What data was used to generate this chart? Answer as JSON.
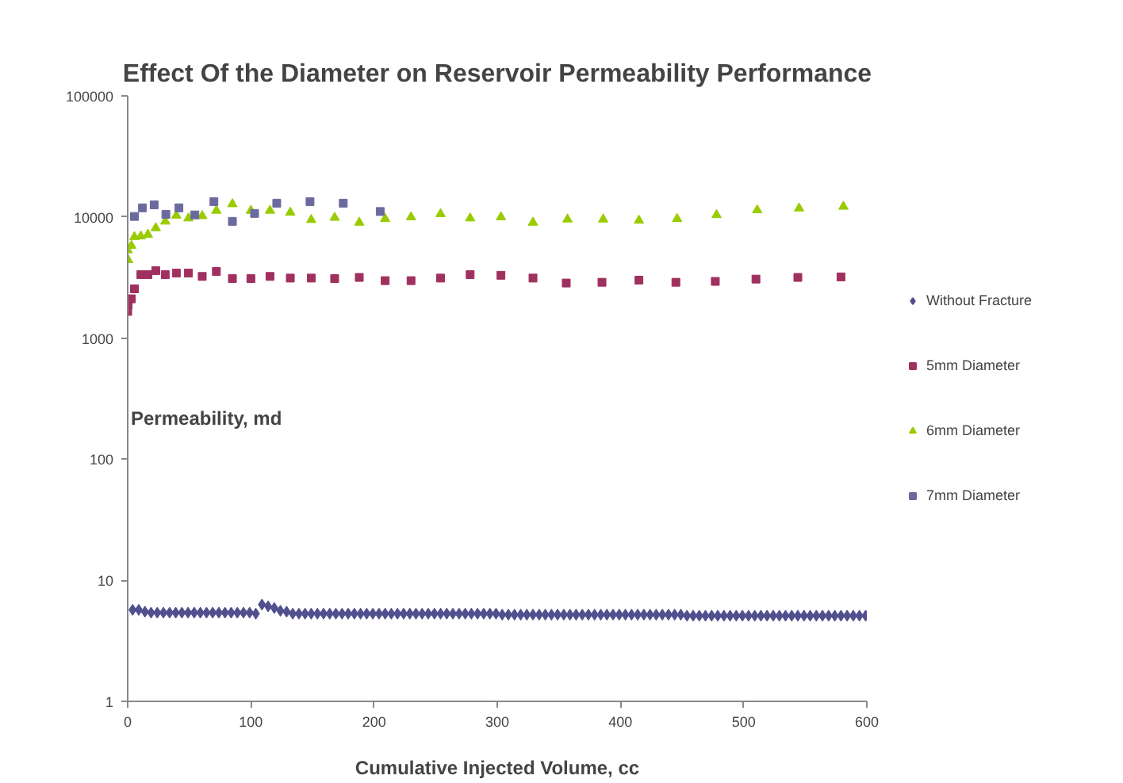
{
  "chart_data": {
    "type": "scatter",
    "title": "Effect Of the Diameter on Reservoir Permeability Performance",
    "xlabel": "Cumulative Injected Volume, cc",
    "ylabel": "Permeability, md",
    "log": "y",
    "xlim": [
      0,
      600
    ],
    "ylim": [
      1,
      100000
    ],
    "xticks": [
      0,
      100,
      200,
      300,
      400,
      500,
      600
    ],
    "yticks": [
      1,
      10,
      100,
      1000,
      10000,
      100000
    ],
    "grid": false,
    "legend": "right",
    "series": [
      {
        "name": "Without Fracture",
        "color": "#50508f",
        "marker": "diamond",
        "x": [
          4,
          9,
          14,
          19,
          24,
          29,
          34,
          39,
          44,
          49,
          54,
          59,
          64,
          69,
          74,
          79,
          84,
          89,
          94,
          99,
          104,
          109,
          114,
          119,
          124,
          129,
          134,
          139,
          144,
          149,
          154,
          159,
          164,
          169,
          174,
          179,
          184,
          189,
          194,
          199,
          204,
          209,
          214,
          219,
          224,
          229,
          234,
          239,
          244,
          249,
          254,
          259,
          264,
          269,
          274,
          279,
          284,
          289,
          294,
          299,
          304,
          309,
          314,
          319,
          324,
          329,
          334,
          339,
          344,
          349,
          354,
          359,
          364,
          369,
          374,
          379,
          384,
          389,
          394,
          399,
          404,
          409,
          414,
          419,
          424,
          429,
          434,
          439,
          444,
          449,
          454,
          459,
          464,
          469,
          474,
          479,
          484,
          489,
          494,
          499,
          504,
          509,
          514,
          519,
          524,
          529,
          534,
          539,
          544,
          549,
          554,
          559,
          564,
          569,
          574,
          579,
          584,
          589,
          594,
          599
        ],
        "values": [
          5.7,
          5.7,
          5.5,
          5.4,
          5.4,
          5.4,
          5.4,
          5.4,
          5.4,
          5.4,
          5.4,
          5.4,
          5.4,
          5.4,
          5.4,
          5.4,
          5.4,
          5.4,
          5.4,
          5.4,
          5.3,
          6.3,
          6.1,
          5.9,
          5.6,
          5.5,
          5.3,
          5.3,
          5.3,
          5.3,
          5.3,
          5.3,
          5.3,
          5.3,
          5.3,
          5.3,
          5.3,
          5.3,
          5.3,
          5.3,
          5.3,
          5.3,
          5.3,
          5.3,
          5.3,
          5.3,
          5.3,
          5.3,
          5.3,
          5.3,
          5.3,
          5.3,
          5.3,
          5.3,
          5.3,
          5.3,
          5.3,
          5.3,
          5.3,
          5.3,
          5.2,
          5.2,
          5.2,
          5.2,
          5.2,
          5.2,
          5.2,
          5.2,
          5.2,
          5.2,
          5.2,
          5.2,
          5.2,
          5.2,
          5.2,
          5.2,
          5.2,
          5.2,
          5.2,
          5.2,
          5.2,
          5.2,
          5.2,
          5.2,
          5.2,
          5.2,
          5.2,
          5.2,
          5.2,
          5.2,
          5.1,
          5.1,
          5.1,
          5.1,
          5.1,
          5.1,
          5.1,
          5.1,
          5.1,
          5.1,
          5.1,
          5.1,
          5.1,
          5.1,
          5.1,
          5.1,
          5.1,
          5.1,
          5.1,
          5.1,
          5.1,
          5.1,
          5.1,
          5.1,
          5.1,
          5.1,
          5.1,
          5.1,
          5.1,
          5.1
        ]
      },
      {
        "name": "5mm Diameter",
        "color": "#a0305f",
        "marker": "square",
        "x": [
          0,
          0.4,
          3,
          5.5,
          10.7,
          16.4,
          22.8,
          30.5,
          39.5,
          49.3,
          60.5,
          72,
          85,
          100,
          115.5,
          132,
          149,
          168,
          188,
          209,
          230,
          254,
          278,
          303,
          329,
          356,
          385,
          415,
          445,
          477,
          510,
          544,
          579
        ],
        "values": [
          1660,
          1880,
          2110,
          2550,
          3340,
          3340,
          3600,
          3340,
          3440,
          3440,
          3230,
          3550,
          3100,
          3100,
          3230,
          3130,
          3130,
          3100,
          3170,
          2980,
          2980,
          3130,
          3340,
          3300,
          3130,
          2850,
          2890,
          3010,
          2890,
          2940,
          3070,
          3170,
          3200
        ]
      },
      {
        "name": "6mm Diameter",
        "color": "#99cc00",
        "marker": "triangle",
        "x": [
          0,
          0.4,
          3,
          5.5,
          10.7,
          16.4,
          22.8,
          30.5,
          39.5,
          49.3,
          60.5,
          72,
          85,
          100,
          115.5,
          132,
          149,
          168,
          188,
          209,
          230,
          254,
          278,
          303,
          329,
          357,
          386,
          415,
          446,
          478,
          511,
          545,
          581
        ],
        "values": [
          5330,
          4420,
          5800,
          6850,
          6940,
          7160,
          8110,
          9190,
          10300,
          9770,
          10200,
          11300,
          12800,
          11300,
          11300,
          10900,
          9480,
          9880,
          9000,
          9660,
          9970,
          10600,
          9770,
          9970,
          9000,
          9570,
          9570,
          9360,
          9660,
          10400,
          11400,
          11800,
          12200
        ]
      },
      {
        "name": "7mm Diameter",
        "color": "#6a6a9e",
        "marker": "square",
        "x": [
          5.5,
          12,
          21.5,
          31,
          41.6,
          54.5,
          70,
          85,
          103,
          121,
          148,
          175,
          205
        ],
        "values": [
          10100,
          11900,
          12600,
          10500,
          11900,
          10400,
          13400,
          9200,
          10700,
          13000,
          13400,
          13000,
          11100
        ]
      }
    ]
  }
}
